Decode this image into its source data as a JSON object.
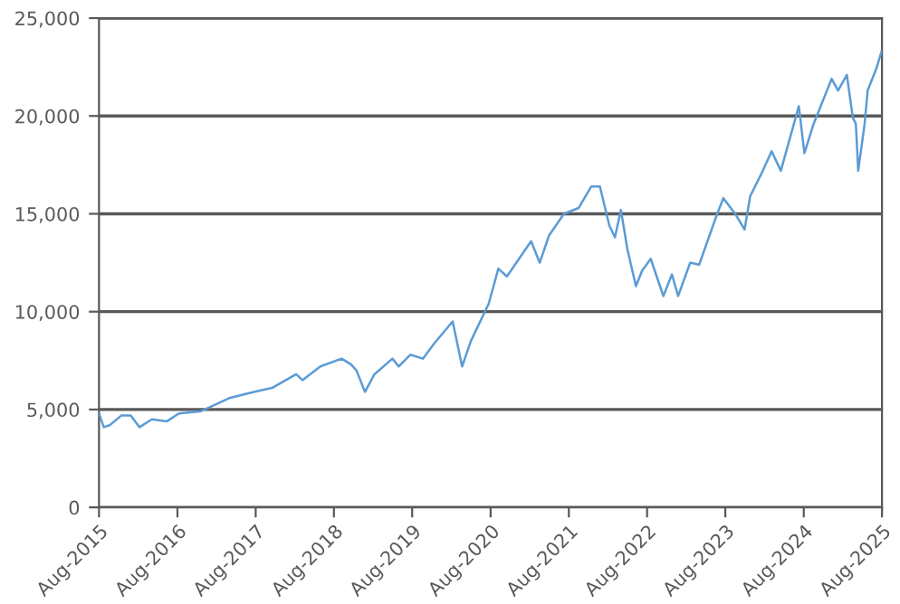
{
  "chart_data": {
    "type": "line",
    "x": [
      "2015-08-01",
      "2015-08-23",
      "2015-09-20",
      "2015-11-14",
      "2015-12-27",
      "2016-02-06",
      "2016-04-04",
      "2016-06-13",
      "2016-08-08",
      "2016-11-14",
      "2016-12-27",
      "2017-04-04",
      "2017-07-23",
      "2017-10-16",
      "2018-02-06",
      "2018-03-07",
      "2018-05-30",
      "2018-09-06",
      "2018-10-20",
      "2018-11-14",
      "2018-12-24",
      "2019-02-06",
      "2019-05-01",
      "2019-05-30",
      "2019-07-23",
      "2019-09-20",
      "2019-11-14",
      "2020-02-06",
      "2020-03-21",
      "2020-05-01",
      "2020-07-23",
      "2020-09-06",
      "2020-10-16",
      "2021-02-06",
      "2021-03-18",
      "2021-05-01",
      "2021-07-09",
      "2021-09-16",
      "2021-11-14",
      "2021-12-24",
      "2022-02-06",
      "2022-03-04",
      "2022-04-01",
      "2022-05-01",
      "2022-06-10",
      "2022-07-09",
      "2022-08-18",
      "2022-10-16",
      "2022-11-25",
      "2022-12-24",
      "2023-02-18",
      "2023-04-01",
      "2023-06-24",
      "2023-07-23",
      "2023-09-16",
      "2023-10-30",
      "2023-11-25",
      "2024-01-23",
      "2024-03-04",
      "2024-04-16",
      "2024-07-09",
      "2024-08-04",
      "2024-09-16",
      "2024-12-09",
      "2025-01-08",
      "2025-02-18",
      "2025-03-18",
      "2025-04-01",
      "2025-04-12",
      "2025-05-12",
      "2025-05-26",
      "2025-07-05",
      "2025-07-30"
    ],
    "series": [
      {
        "color": "#5b9bd5",
        "values": [
          4800,
          4100,
          4200,
          4700,
          4700,
          4100,
          4500,
          4400,
          4800,
          4900,
          5100,
          5600,
          5900,
          6100,
          6800,
          6500,
          7200,
          7600,
          7300,
          7000,
          5900,
          6800,
          7600,
          7200,
          7800,
          7600,
          8400,
          9500,
          7200,
          8500,
          10400,
          12200,
          11800,
          13600,
          12500,
          13900,
          15000,
          15300,
          16400,
          16400,
          14400,
          13800,
          15200,
          13200,
          11300,
          12100,
          12700,
          10800,
          11900,
          10800,
          12500,
          12400,
          15000,
          15800,
          15000,
          14200,
          15900,
          17200,
          18200,
          17200,
          20500,
          18100,
          19600,
          21900,
          21300,
          22100,
          19900,
          19600,
          17200,
          19600,
          21300,
          22400,
          23300
        ]
      }
    ],
    "xlim": [
      "2015-08-01",
      "2025-08-01"
    ],
    "xticks": [
      {
        "value": "2015-08-01",
        "label": "Aug-2015"
      },
      {
        "value": "2016-08-01",
        "label": "Aug-2016"
      },
      {
        "value": "2017-08-01",
        "label": "Aug-2017"
      },
      {
        "value": "2018-08-01",
        "label": "Aug-2018"
      },
      {
        "value": "2019-08-01",
        "label": "Aug-2019"
      },
      {
        "value": "2020-08-01",
        "label": "Aug-2020"
      },
      {
        "value": "2021-08-01",
        "label": "Aug-2021"
      },
      {
        "value": "2022-08-01",
        "label": "Aug-2022"
      },
      {
        "value": "2023-08-01",
        "label": "Aug-2023"
      },
      {
        "value": "2024-08-01",
        "label": "Aug-2024"
      },
      {
        "value": "2025-08-01",
        "label": "Aug-2025"
      }
    ],
    "ylim": [
      0,
      25000
    ],
    "yticks": [
      {
        "value": 0,
        "label": "0"
      },
      {
        "value": 5000,
        "label": "5,000"
      },
      {
        "value": 10000,
        "label": "10,000"
      },
      {
        "value": 15000,
        "label": "15,000"
      },
      {
        "value": 20000,
        "label": "20,000"
      },
      {
        "value": 25000,
        "label": "25,000"
      }
    ],
    "grid": "y",
    "marker": "none",
    "line_style": "solid"
  }
}
